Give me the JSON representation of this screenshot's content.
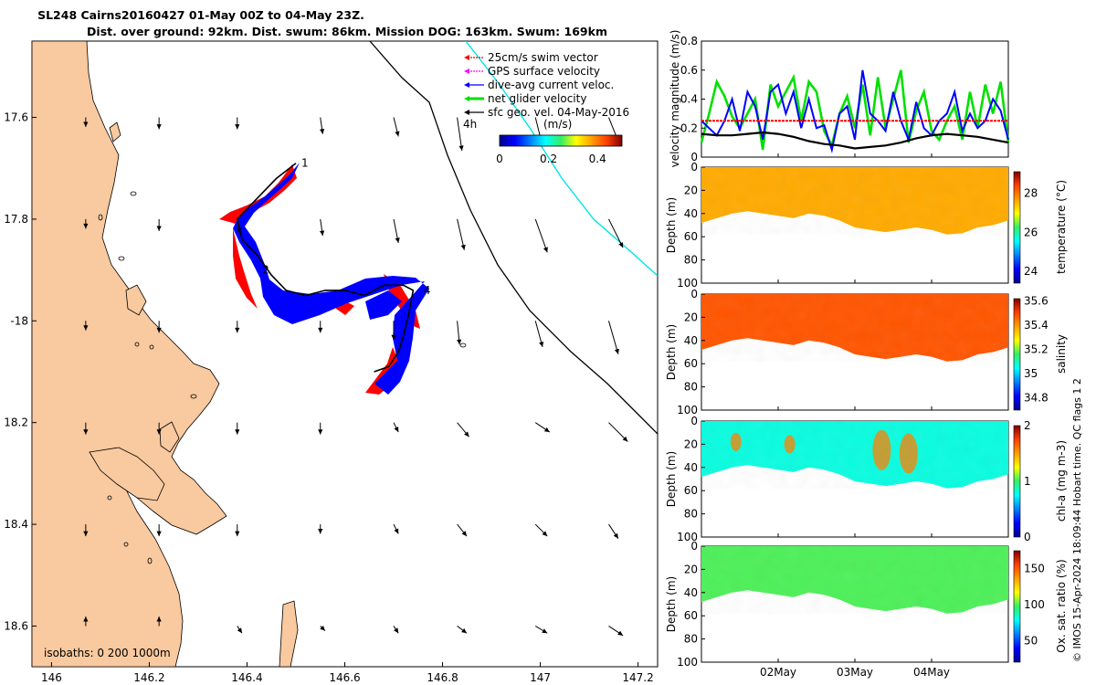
{
  "header": {
    "title_line1": "SL248 Cairns20160427 01-May 00Z to 04-May 23Z.",
    "title_line2": "Dist. over ground: 92km. Dist. swum: 86km. Mission DOG: 163km. Swum: 169km"
  },
  "credit": "© IMOS 15-Apr-2024 18:09:44 Hobart time. QC flags 1  2",
  "colors": {
    "land": "#f9c99f",
    "swim": "#ff0000",
    "gps": "#ff00ff",
    "dive_current": "#0000ff",
    "net_glider": "#00e000",
    "sfc_geo": "#000000",
    "contour_200": "#00e5e5"
  },
  "chart_data": [
    {
      "type": "map",
      "name": "glider track map",
      "xlabel_ticks": [
        "146",
        "146.2",
        "146.4",
        "146.6",
        "146.8",
        "147",
        "147.2"
      ],
      "x_tick_values": [
        146,
        146.2,
        146.4,
        146.6,
        146.8,
        147,
        147.2
      ],
      "y_tick_labels": [
        "17.6",
        "17.8",
        "-18",
        "18.2",
        "18.4",
        "18.6"
      ],
      "y_tick_values": [
        -17.6,
        -17.8,
        -18,
        -18.2,
        -18.4,
        -18.6
      ],
      "xlim": [
        145.96,
        147.24
      ],
      "ylim": [
        -18.68,
        -17.45
      ],
      "legend": [
        {
          "label": "25cm/s swim vector",
          "color_key": "swim"
        },
        {
          "label": "GPS surface velocity",
          "color_key": "gps"
        },
        {
          "label": "dive-avg current veloc.",
          "color_key": "dive_current"
        },
        {
          "label": "net glider velocity",
          "color_key": "net_glider"
        },
        {
          "label": "sfc geo. vel. 04-May-2016",
          "color_key": "sfc_geo"
        }
      ],
      "legend_note": "4h",
      "colorbar_label": "(m/s)",
      "colorbar_ticks": [
        "0",
        "0.2",
        "0.4"
      ],
      "colorbar_values": [
        0,
        0.2,
        0.4
      ],
      "colorbar_range": [
        0,
        0.5
      ],
      "isobaths_label": "isobaths: 0   200  1000m",
      "waypoints": [
        {
          "label": "1",
          "lon": 146.5,
          "lat": -17.69
        },
        {
          "label": "2",
          "lon": 146.42,
          "lat": -17.9
        },
        {
          "label": "4",
          "lon": 146.75,
          "lat": -17.94
        }
      ],
      "glider_track": [
        [
          146.5,
          -17.69
        ],
        [
          146.46,
          -17.72
        ],
        [
          146.42,
          -17.76
        ],
        [
          146.38,
          -17.8
        ],
        [
          146.39,
          -17.84
        ],
        [
          146.42,
          -17.87
        ],
        [
          146.45,
          -17.91
        ],
        [
          146.48,
          -17.94
        ],
        [
          146.52,
          -17.95
        ],
        [
          146.56,
          -17.94
        ],
        [
          146.6,
          -17.94
        ],
        [
          146.64,
          -17.95
        ],
        [
          146.68,
          -17.93
        ],
        [
          146.72,
          -17.93
        ],
        [
          146.74,
          -17.94
        ],
        [
          146.73,
          -17.99
        ],
        [
          146.72,
          -18.03
        ],
        [
          146.71,
          -18.06
        ],
        [
          146.69,
          -18.09
        ],
        [
          146.66,
          -18.1
        ]
      ],
      "geo_vectors": {
        "lons": [
          146.07,
          146.22,
          146.38,
          146.55,
          146.7,
          146.83,
          146.99,
          147.14
        ],
        "lats": [
          -17.6,
          -17.8,
          -18.0,
          -18.2,
          -18.4,
          -18.6
        ],
        "u": [
          [
            0.0,
            0.0,
            0.0,
            0.01,
            0.02,
            0.02,
            0.03,
            0.04
          ],
          [
            0.0,
            0.0,
            0.01,
            0.01,
            0.02,
            0.03,
            0.05,
            0.06
          ],
          [
            0.0,
            0.0,
            0.0,
            0.0,
            0.0,
            0.01,
            0.03,
            0.04
          ],
          [
            0.0,
            0.0,
            0.0,
            0.0,
            0.02,
            0.05,
            0.06,
            0.08
          ],
          [
            0.0,
            0.0,
            0.0,
            0.0,
            0.02,
            0.04,
            0.05,
            0.04
          ],
          [
            0.0,
            0.0,
            0.02,
            0.02,
            0.02,
            0.04,
            0.05,
            0.06
          ]
        ],
        "v": [
          [
            -0.04,
            -0.05,
            -0.05,
            -0.07,
            -0.08,
            -0.14,
            -0.12,
            -0.1
          ],
          [
            -0.04,
            -0.05,
            -0.06,
            -0.07,
            -0.1,
            -0.13,
            -0.14,
            -0.12
          ],
          [
            -0.04,
            -0.05,
            -0.05,
            -0.05,
            -0.08,
            -0.1,
            -0.11,
            -0.14
          ],
          [
            -0.05,
            -0.05,
            -0.05,
            -0.05,
            -0.04,
            -0.06,
            -0.04,
            -0.08
          ],
          [
            -0.05,
            -0.05,
            -0.05,
            -0.04,
            -0.04,
            -0.05,
            -0.05,
            -0.06
          ],
          [
            0.04,
            0.04,
            -0.03,
            -0.02,
            -0.03,
            -0.03,
            -0.03,
            -0.04
          ]
        ]
      }
    },
    {
      "type": "line",
      "name": "velocity magnitude",
      "ylabel": "velocity magnitude (m/s)",
      "y_ticks": [
        "0",
        "0.2",
        "0.4",
        "0.6",
        "0.8"
      ],
      "y_tick_values": [
        0,
        0.2,
        0.4,
        0.6,
        0.8
      ],
      "ylim": [
        0,
        0.8
      ],
      "xlim": [
        0,
        4
      ],
      "series": [
        {
          "name": "net glider velocity",
          "color_key": "net_glider",
          "x": [
            0,
            0.1,
            0.2,
            0.3,
            0.4,
            0.5,
            0.6,
            0.7,
            0.8,
            0.9,
            1.0,
            1.1,
            1.2,
            1.3,
            1.4,
            1.5,
            1.6,
            1.7,
            1.8,
            1.9,
            2.0,
            2.1,
            2.2,
            2.3,
            2.4,
            2.5,
            2.6,
            2.7,
            2.8,
            2.9,
            3.0,
            3.1,
            3.2,
            3.3,
            3.4,
            3.5,
            3.6,
            3.7,
            3.8,
            3.9,
            4.0
          ],
          "values": [
            0.1,
            0.3,
            0.52,
            0.42,
            0.28,
            0.2,
            0.3,
            0.4,
            0.05,
            0.5,
            0.35,
            0.45,
            0.55,
            0.25,
            0.52,
            0.45,
            0.18,
            0.08,
            0.3,
            0.42,
            0.2,
            0.5,
            0.15,
            0.55,
            0.2,
            0.4,
            0.6,
            0.1,
            0.32,
            0.45,
            0.18,
            0.12,
            0.25,
            0.35,
            0.12,
            0.45,
            0.2,
            0.5,
            0.3,
            0.52,
            0.1
          ]
        },
        {
          "name": "dive-avg current veloc.",
          "color_key": "dive_current",
          "x": [
            0,
            0.1,
            0.2,
            0.3,
            0.4,
            0.5,
            0.6,
            0.7,
            0.8,
            0.9,
            1.0,
            1.1,
            1.2,
            1.3,
            1.4,
            1.5,
            1.6,
            1.7,
            1.8,
            1.9,
            2.0,
            2.1,
            2.2,
            2.3,
            2.4,
            2.5,
            2.6,
            2.7,
            2.8,
            2.9,
            3.0,
            3.1,
            3.2,
            3.3,
            3.4,
            3.5,
            3.6,
            3.7,
            3.8,
            3.9,
            4.0
          ],
          "values": [
            0.25,
            0.2,
            0.15,
            0.25,
            0.4,
            0.18,
            0.45,
            0.35,
            0.12,
            0.45,
            0.5,
            0.3,
            0.45,
            0.2,
            0.4,
            0.2,
            0.22,
            0.05,
            0.3,
            0.35,
            0.12,
            0.6,
            0.3,
            0.25,
            0.18,
            0.45,
            0.25,
            0.12,
            0.38,
            0.2,
            0.15,
            0.25,
            0.3,
            0.45,
            0.18,
            0.3,
            0.2,
            0.25,
            0.4,
            0.32,
            0.12
          ]
        },
        {
          "name": "25cm/s swim vector",
          "color_key": "swim",
          "x": [
            0,
            4
          ],
          "values": [
            0.25,
            0.25
          ]
        },
        {
          "name": "sfc geo. vel.",
          "color_key": "sfc_geo",
          "x": [
            0,
            0.2,
            0.4,
            0.6,
            0.8,
            1.0,
            1.2,
            1.4,
            1.6,
            1.8,
            2.0,
            2.2,
            2.4,
            2.6,
            2.8,
            3.0,
            3.2,
            3.4,
            3.6,
            3.8,
            4.0
          ],
          "values": [
            0.16,
            0.15,
            0.15,
            0.16,
            0.17,
            0.16,
            0.14,
            0.11,
            0.09,
            0.08,
            0.06,
            0.07,
            0.08,
            0.1,
            0.13,
            0.15,
            0.16,
            0.15,
            0.14,
            0.12,
            0.1
          ]
        }
      ]
    },
    {
      "type": "heatmap",
      "name": "temperature section",
      "ylabel": "Depth (m)",
      "colorbar_label": "temperature (°C)",
      "colorbar_ticks": [
        "24",
        "26",
        "28"
      ],
      "colorbar_values": [
        24,
        26,
        28
      ],
      "clim": [
        23.4,
        29.1
      ],
      "y_ticks": [
        "0",
        "20",
        "40",
        "60",
        "80",
        "100"
      ],
      "ylim": [
        0,
        100
      ],
      "xlim": [
        0,
        4
      ],
      "typical_value": 27.6
    },
    {
      "type": "heatmap",
      "name": "salinity section",
      "ylabel": "Depth (m)",
      "colorbar_label": "salinity",
      "colorbar_ticks": [
        "35.6",
        "35.4",
        "35.2",
        "35",
        "34.8"
      ],
      "colorbar_values": [
        35.6,
        35.4,
        35.2,
        35,
        34.8
      ],
      "clim": [
        34.7,
        35.62
      ],
      "y_ticks": [
        "0",
        "20",
        "40",
        "60",
        "80",
        "100"
      ],
      "ylim": [
        0,
        100
      ],
      "xlim": [
        0,
        4
      ],
      "typical_value": 35.48
    },
    {
      "type": "heatmap",
      "name": "chlorophyll section",
      "ylabel": "Depth (m)",
      "colorbar_label": "chl-a (mg m-3)",
      "colorbar_ticks": [
        "2",
        "1",
        "0"
      ],
      "colorbar_values": [
        2,
        1,
        0
      ],
      "clim": [
        0,
        2
      ],
      "y_ticks": [
        "0",
        "20",
        "40",
        "60",
        "80",
        "100"
      ],
      "ylim": [
        0,
        100
      ],
      "xlim": [
        0,
        4
      ],
      "typical_value": 0.8
    },
    {
      "type": "heatmap",
      "name": "oxygen saturation section",
      "ylabel": "Depth (m)",
      "colorbar_label": "Ox. sat. ratio (%)",
      "colorbar_ticks": [
        "150",
        "100",
        "50"
      ],
      "colorbar_values": [
        150,
        100,
        50
      ],
      "clim": [
        20,
        175
      ],
      "y_ticks": [
        "0",
        "20",
        "40",
        "60",
        "80",
        "100"
      ],
      "ylim": [
        0,
        100
      ],
      "xlim": [
        0,
        4
      ],
      "typical_value": 100,
      "x_ticks": [
        "02May",
        "03May",
        "04May"
      ],
      "x_tick_values": [
        1,
        2,
        3
      ]
    }
  ],
  "section_bottom_depth": {
    "x": [
      0,
      0.2,
      0.4,
      0.6,
      0.8,
      1.0,
      1.2,
      1.4,
      1.6,
      1.8,
      2.0,
      2.2,
      2.4,
      2.6,
      2.8,
      3.0,
      3.2,
      3.4,
      3.6,
      3.8,
      4.0
    ],
    "values": [
      48,
      44,
      40,
      38,
      40,
      42,
      44,
      40,
      42,
      46,
      52,
      54,
      56,
      54,
      52,
      54,
      58,
      57,
      52,
      50,
      46
    ]
  }
}
